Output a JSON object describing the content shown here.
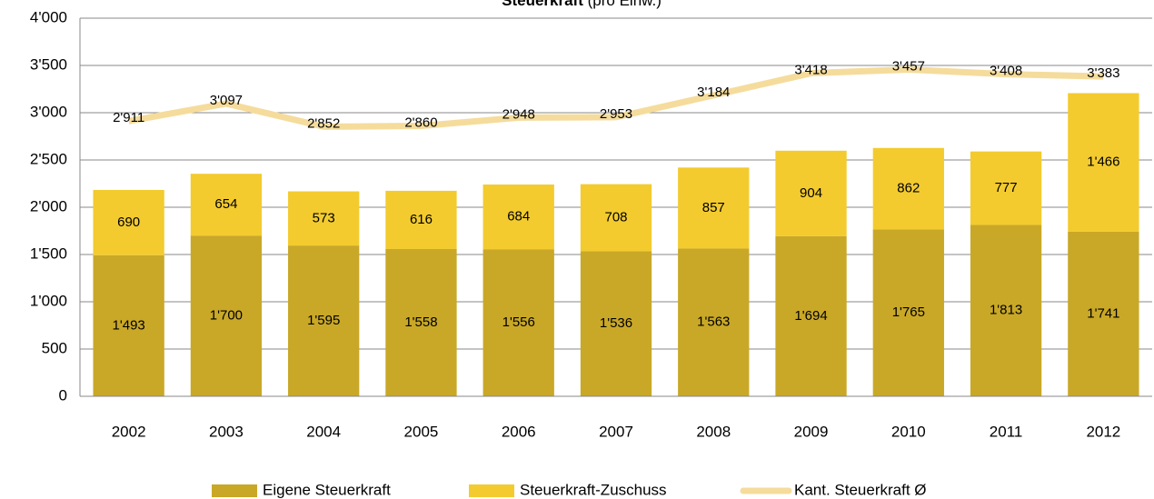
{
  "chart_data": {
    "type": "bar",
    "stacked": true,
    "title": "Steuerkraft",
    "subtitle": "(pro Einw.)",
    "categories": [
      "2002",
      "2003",
      "2004",
      "2005",
      "2006",
      "2007",
      "2008",
      "2009",
      "2010",
      "2011",
      "2012"
    ],
    "series": [
      {
        "name": "Eigene Steuerkraft",
        "type": "bar",
        "color": "#c9a827",
        "values": [
          1493,
          1700,
          1595,
          1558,
          1556,
          1536,
          1563,
          1694,
          1765,
          1813,
          1741
        ],
        "value_labels": [
          "1'493",
          "1'700",
          "1'595",
          "1'558",
          "1'556",
          "1'536",
          "1'563",
          "1'694",
          "1'765",
          "1'813",
          "1'741"
        ]
      },
      {
        "name": "Steuerkraft-Zuschuss",
        "type": "bar",
        "color": "#f3cb2f",
        "values": [
          690,
          654,
          573,
          616,
          684,
          708,
          857,
          904,
          862,
          777,
          1466
        ],
        "value_labels": [
          "690",
          "654",
          "573",
          "616",
          "684",
          "708",
          "857",
          "904",
          "862",
          "777",
          "1'466"
        ]
      },
      {
        "name": "Kant. Steuerkraft Ø",
        "type": "line",
        "color": "#f5dc9c",
        "values": [
          2911,
          3097,
          2852,
          2860,
          2948,
          2953,
          3184,
          3418,
          3457,
          3408,
          3383
        ],
        "value_labels": [
          "2'911",
          "3'097",
          "2'852",
          "2'860",
          "2'948",
          "2'953",
          "3'184",
          "3'418",
          "3'457",
          "3'408",
          "3'383"
        ]
      }
    ],
    "ylim": [
      0,
      4000
    ],
    "yticks": [
      0,
      500,
      {
        "value": 1000,
        "label": "1'000"
      },
      {
        "value": 1500,
        "label": "1'500"
      },
      {
        "value": 2000,
        "label": "2'000"
      },
      {
        "value": 2500,
        "label": "2'500"
      },
      {
        "value": 3000,
        "label": "3'000"
      },
      {
        "value": 3500,
        "label": "3'500"
      },
      {
        "value": 4000,
        "label": "4'000"
      }
    ],
    "grid": true,
    "legend": "bottom"
  }
}
